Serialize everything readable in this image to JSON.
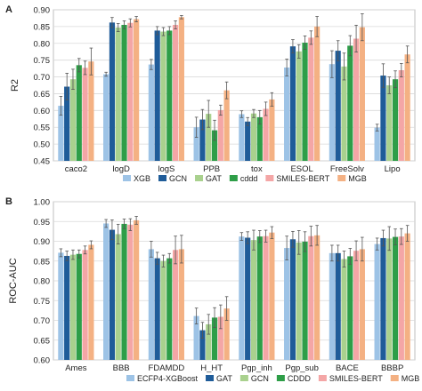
{
  "chart_data": [
    {
      "type": "bar",
      "panel_label": "A",
      "title": "",
      "xlabel": "",
      "ylabel": "R2",
      "ylim": [
        0.45,
        0.9
      ],
      "yticks": [
        "0.45",
        "0.50",
        "0.55",
        "0.60",
        "0.65",
        "0.70",
        "0.75",
        "0.80",
        "0.85",
        "0.90"
      ],
      "grid": true,
      "legend_position": "bottom",
      "categories": [
        "caco2",
        "logD",
        "logS",
        "PPB",
        "tox",
        "ESOL",
        "FreeSolv",
        "Lipo"
      ],
      "series": [
        {
          "name": "XGB",
          "color": "#9dc3e6",
          "values": [
            0.614,
            0.708,
            0.737,
            0.55,
            0.589,
            0.728,
            0.738,
            0.549
          ],
          "errors": [
            0.028,
            0.006,
            0.015,
            0.03,
            0.01,
            0.025,
            0.04,
            0.01
          ]
        },
        {
          "name": "GCN",
          "color": "#1f5c99",
          "values": [
            0.671,
            0.862,
            0.838,
            0.573,
            0.567,
            0.791,
            0.778,
            0.704
          ],
          "errors": [
            0.04,
            0.015,
            0.012,
            0.03,
            0.012,
            0.02,
            0.03,
            0.035
          ]
        },
        {
          "name": "GAT",
          "color": "#a9d18e",
          "values": [
            0.693,
            0.847,
            0.835,
            0.59,
            0.591,
            0.776,
            0.731,
            0.675
          ],
          "errors": [
            0.03,
            0.012,
            0.012,
            0.04,
            0.012,
            0.02,
            0.04,
            0.025
          ]
        },
        {
          "name": "cddd",
          "color": "#2e9e48",
          "values": [
            0.735,
            0.855,
            0.838,
            0.541,
            0.58,
            0.802,
            0.793,
            0.693
          ],
          "errors": [
            0.02,
            0.012,
            0.012,
            0.03,
            0.02,
            0.02,
            0.03,
            0.025
          ]
        },
        {
          "name": "SMILES-BERT",
          "color": "#f4a6a6",
          "values": [
            0.727,
            0.861,
            0.855,
            0.601,
            0.605,
            0.817,
            0.814,
            0.72
          ],
          "errors": [
            0.02,
            0.012,
            0.012,
            0.015,
            0.02,
            0.02,
            0.04,
            0.02
          ]
        },
        {
          "name": "MGB",
          "color": "#f4b183",
          "values": [
            0.746,
            0.872,
            0.878,
            0.66,
            0.633,
            0.85,
            0.848,
            0.767
          ],
          "errors": [
            0.04,
            0.008,
            0.005,
            0.025,
            0.02,
            0.03,
            0.04,
            0.025
          ]
        }
      ]
    },
    {
      "type": "bar",
      "panel_label": "B",
      "title": "",
      "xlabel": "",
      "ylabel": "ROC-AUC",
      "ylim": [
        0.6,
        1.0
      ],
      "yticks": [
        "0.60",
        "0.65",
        "0.70",
        "0.75",
        "0.80",
        "0.85",
        "0.90",
        "0.95",
        "1.00"
      ],
      "grid": true,
      "legend_position": "bottom",
      "categories": [
        "Ames",
        "BBB",
        "FDAMDD",
        "H_HT",
        "Pgp_inh",
        "Pgp_sub",
        "BACE",
        "BBBP"
      ],
      "series": [
        {
          "name": "ECFP4-XGBoost",
          "color": "#9dc3e6",
          "values": [
            0.871,
            0.945,
            0.88,
            0.711,
            0.912,
            0.883,
            0.87,
            0.893
          ],
          "errors": [
            0.01,
            0.01,
            0.02,
            0.02,
            0.01,
            0.03,
            0.02,
            0.015
          ]
        },
        {
          "name": "GAT",
          "color": "#1f5c99",
          "values": [
            0.863,
            0.929,
            0.857,
            0.675,
            0.909,
            0.905,
            0.87,
            0.908
          ],
          "errors": [
            0.012,
            0.025,
            0.015,
            0.02,
            0.015,
            0.02,
            0.02,
            0.02
          ]
        },
        {
          "name": "GCN",
          "color": "#a9d18e",
          "values": [
            0.866,
            0.918,
            0.85,
            0.69,
            0.903,
            0.897,
            0.855,
            0.907
          ],
          "errors": [
            0.012,
            0.025,
            0.015,
            0.025,
            0.025,
            0.03,
            0.02,
            0.03
          ]
        },
        {
          "name": "CDDD",
          "color": "#2e9e48",
          "values": [
            0.868,
            0.944,
            0.857,
            0.707,
            0.912,
            0.899,
            0.862,
            0.911
          ],
          "errors": [
            0.01,
            0.012,
            0.012,
            0.025,
            0.015,
            0.025,
            0.02,
            0.02
          ]
        },
        {
          "name": "SMILES-BERT",
          "color": "#f4a6a6",
          "values": [
            0.878,
            0.942,
            0.878,
            0.709,
            0.913,
            0.913,
            0.876,
            0.912
          ],
          "errors": [
            0.01,
            0.015,
            0.035,
            0.03,
            0.015,
            0.025,
            0.025,
            0.02
          ]
        },
        {
          "name": "MGB",
          "color": "#f4b183",
          "values": [
            0.891,
            0.953,
            0.88,
            0.73,
            0.922,
            0.915,
            0.88,
            0.92
          ],
          "errors": [
            0.01,
            0.01,
            0.035,
            0.03,
            0.015,
            0.025,
            0.03,
            0.02
          ]
        }
      ]
    }
  ]
}
